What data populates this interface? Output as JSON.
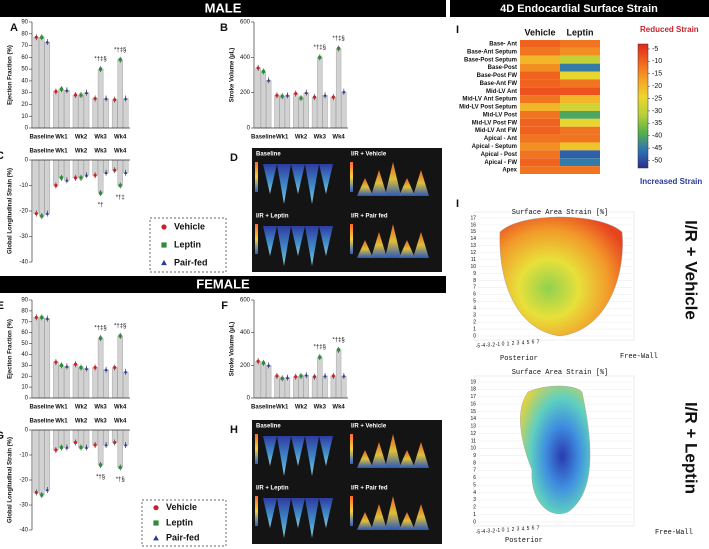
{
  "headers": {
    "male": "MALE",
    "female": "FEMALE",
    "right": "4D Endocardial Surface Strain"
  },
  "chart_data": [
    {
      "type": "bar",
      "panel": "A",
      "y_label": "Ejection Fraction (%)",
      "categories": [
        "Baseline",
        "Wk1",
        "Wk2",
        "Wk3",
        "Wk4"
      ],
      "bar_color": "#d2d2d2",
      "series": [
        {
          "color": "#c8232c",
          "marker": "circle",
          "values": [
            77,
            31,
            28,
            25,
            24
          ]
        },
        {
          "color": "#2e8b3a",
          "marker": "square",
          "values": [
            77,
            33,
            28,
            50,
            58
          ]
        },
        {
          "color": "#2a3a9c",
          "marker": "triangle",
          "values": [
            73,
            32,
            30,
            25,
            25
          ]
        }
      ],
      "annotations": [
        null,
        null,
        null,
        "*†‡§",
        "*†‡§"
      ],
      "ylim": [
        0,
        90
      ],
      "yticks": [
        0,
        10,
        20,
        30,
        40,
        50,
        60,
        70,
        80,
        90
      ],
      "category_axis": "bottom"
    },
    {
      "type": "bar",
      "panel": "B",
      "y_label": "Stroke Volume (μL)",
      "categories": [
        "Baseline",
        "Wk1",
        "Wk2",
        "Wk3",
        "Wk4"
      ],
      "bar_color": "#d2d2d2",
      "series": [
        {
          "color": "#c8232c",
          "marker": "circle",
          "values": [
            340,
            185,
            195,
            175,
            175
          ]
        },
        {
          "color": "#2e8b3a",
          "marker": "square",
          "values": [
            320,
            180,
            170,
            400,
            450
          ]
        },
        {
          "color": "#2a3a9c",
          "marker": "triangle",
          "values": [
            270,
            185,
            200,
            185,
            205
          ]
        }
      ],
      "annotations": [
        null,
        null,
        null,
        "*†‡§",
        "*†‡§"
      ],
      "ylim": [
        0,
        600
      ],
      "yticks": [
        0,
        200,
        400,
        600
      ],
      "category_axis": "bottom"
    },
    {
      "type": "bar",
      "panel": "C",
      "y_label": "Global Longitudinal Strain (%)",
      "categories": [
        "Baseline",
        "Wk1",
        "Wk2",
        "Wk3",
        "Wk4"
      ],
      "bar_color": "#d2d2d2",
      "series": [
        {
          "name": "Vehicle",
          "color": "#c8232c",
          "marker": "circle",
          "values": [
            -21,
            -10,
            -7,
            -6,
            -4
          ]
        },
        {
          "name": "Leptin",
          "color": "#2e8b3a",
          "marker": "square",
          "values": [
            -22,
            -7,
            -7,
            -13,
            -10
          ]
        },
        {
          "name": "Pair-fed",
          "color": "#2a3a9c",
          "marker": "triangle",
          "values": [
            -21,
            -8,
            -6,
            -5,
            -5
          ]
        }
      ],
      "annotations": [
        null,
        null,
        null,
        "*†",
        "*†‡"
      ],
      "ylim": [
        -40,
        0
      ],
      "yticks": [
        0,
        -10,
        -20,
        -30,
        -40
      ],
      "category_axis": "top",
      "legend": "bottom-right"
    },
    {
      "type": "bar",
      "panel": "E",
      "y_label": "Ejection Fraction (%)",
      "categories": [
        "Baseline",
        "Wk1",
        "Wk2",
        "Wk3",
        "Wk4"
      ],
      "bar_color": "#d2d2d2",
      "series": [
        {
          "color": "#c8232c",
          "marker": "circle",
          "values": [
            74,
            33,
            31,
            28,
            28
          ]
        },
        {
          "color": "#2e8b3a",
          "marker": "square",
          "values": [
            74,
            30,
            28,
            55,
            57
          ]
        },
        {
          "color": "#2a3a9c",
          "marker": "triangle",
          "values": [
            73,
            29,
            27,
            26,
            24
          ]
        }
      ],
      "annotations": [
        null,
        null,
        null,
        "*†‡§",
        "*†‡§"
      ],
      "ylim": [
        0,
        90
      ],
      "yticks": [
        0,
        10,
        20,
        30,
        40,
        50,
        60,
        70,
        80,
        90
      ],
      "category_axis": "bottom"
    },
    {
      "type": "bar",
      "panel": "F",
      "y_label": "Stroke Volume (μL)",
      "categories": [
        "Baseline",
        "Wk1",
        "Wk2",
        "Wk3",
        "Wk4"
      ],
      "bar_color": "#d2d2d2",
      "series": [
        {
          "color": "#c8232c",
          "marker": "circle",
          "values": [
            225,
            135,
            130,
            130,
            135
          ]
        },
        {
          "color": "#2e8b3a",
          "marker": "square",
          "values": [
            215,
            120,
            135,
            250,
            295
          ]
        },
        {
          "color": "#2a3a9c",
          "marker": "triangle",
          "values": [
            200,
            125,
            140,
            135,
            135
          ]
        }
      ],
      "annotations": [
        null,
        null,
        null,
        "*†‡§",
        "*†‡§"
      ],
      "ylim": [
        0,
        600
      ],
      "yticks": [
        0,
        200,
        400,
        600
      ],
      "category_axis": "bottom"
    },
    {
      "type": "bar",
      "panel": "G",
      "y_label": "Global Longitudinal Strain (%)",
      "categories": [
        "Baseline",
        "Wk1",
        "Wk2",
        "Wk3",
        "Wk4"
      ],
      "bar_color": "#d2d2d2",
      "series": [
        {
          "name": "Vehicle",
          "color": "#c8232c",
          "marker": "circle",
          "values": [
            -25,
            -8,
            -5,
            -6,
            -5
          ]
        },
        {
          "name": "Leptin",
          "color": "#2e8b3a",
          "marker": "square",
          "values": [
            -26,
            -7,
            -7,
            -14,
            -15
          ]
        },
        {
          "name": "Pair-fed",
          "color": "#2a3a9c",
          "marker": "triangle",
          "values": [
            -24,
            -7,
            -7,
            -6,
            -6
          ]
        }
      ],
      "annotations": [
        null,
        null,
        null,
        "*†§",
        "*†§"
      ],
      "ylim": [
        -40,
        0
      ],
      "yticks": [
        0,
        -10,
        -20,
        -30,
        -40
      ],
      "category_axis": "top",
      "legend": "bottom-right"
    },
    {
      "type": "heatmap",
      "panel": "I",
      "columns": [
        "Vehicle",
        "Leptin"
      ],
      "rows": [
        "Base- Ant",
        "Base-Ant Septum",
        "Base-Post Septum",
        "Base-Post",
        "Base-Post FW",
        "Base-Ant FW",
        "Mid-LV Ant",
        "Mid-LV Ant Septum",
        "Mid-LV Post Septum",
        "Mid-LV Post",
        "Mid-LV Post FW",
        "Mid-LV Ant FW",
        "Apical - Ant",
        "Apical - Septum",
        "Apical - Post",
        "Apical - FW",
        "Apex"
      ],
      "values": [
        [
          -10,
          -12
        ],
        [
          -12,
          -15
        ],
        [
          -20,
          -30
        ],
        [
          -15,
          -45
        ],
        [
          -10,
          -25
        ],
        [
          -10,
          -12
        ],
        [
          -8,
          -8
        ],
        [
          -12,
          -20
        ],
        [
          -20,
          -28
        ],
        [
          -12,
          -40
        ],
        [
          -10,
          -25
        ],
        [
          -10,
          -12
        ],
        [
          -12,
          -12
        ],
        [
          -15,
          -22
        ],
        [
          -12,
          -48
        ],
        [
          -10,
          -45
        ],
        [
          -12,
          -12
        ]
      ],
      "colorscale": [
        "#e3261b",
        "#f0641f",
        "#f5a225",
        "#ecd62d",
        "#b8cf3a",
        "#55b04b",
        "#2f73b3",
        "#2b2f8e"
      ],
      "zlim": [
        -3,
        -53
      ],
      "zticks": [
        -5,
        -10,
        -15,
        -20,
        -25,
        -30,
        -35,
        -40,
        -45,
        -50
      ],
      "label_top": "Reduced Strain",
      "label_bottom": "Increased Strain"
    }
  ],
  "image_panels": [
    {
      "panel": "D",
      "labels": [
        "Baseline",
        "I/R + Vehicle",
        "I/R + Leptin",
        "I/R + Pair fed"
      ]
    },
    {
      "panel": "H",
      "labels": [
        "Baseline",
        "I/R + Vehicle",
        "I/R + Leptin",
        "I/R + Pair fed"
      ]
    }
  ],
  "surface_plots": [
    {
      "panel": "I",
      "title": "Surface Area Strain [%]",
      "side_label": "I/R + Vehicle",
      "zticks": [
        0,
        1,
        2,
        3,
        4,
        5,
        6,
        7,
        8,
        9,
        10,
        11,
        12,
        13,
        14,
        15,
        16,
        17
      ],
      "xticks": [
        -5,
        -4,
        -3,
        -2,
        -1,
        0,
        1,
        2,
        3,
        4,
        5,
        6,
        7
      ],
      "x_label": "Posterior",
      "y_label": "Free-Wall"
    },
    {
      "title": "Surface Area Strain [%]",
      "side_label": "I/R + Leptin",
      "zticks": [
        0,
        1,
        2,
        3,
        4,
        5,
        6,
        7,
        8,
        9,
        10,
        11,
        12,
        13,
        14,
        15,
        16,
        17,
        18,
        19
      ],
      "xticks": [
        -5,
        -4,
        -3,
        -2,
        -1,
        0,
        1,
        2,
        3,
        4,
        5,
        6,
        7
      ],
      "x_label": "Posterior",
      "y_label": "Free-Wall"
    }
  ]
}
